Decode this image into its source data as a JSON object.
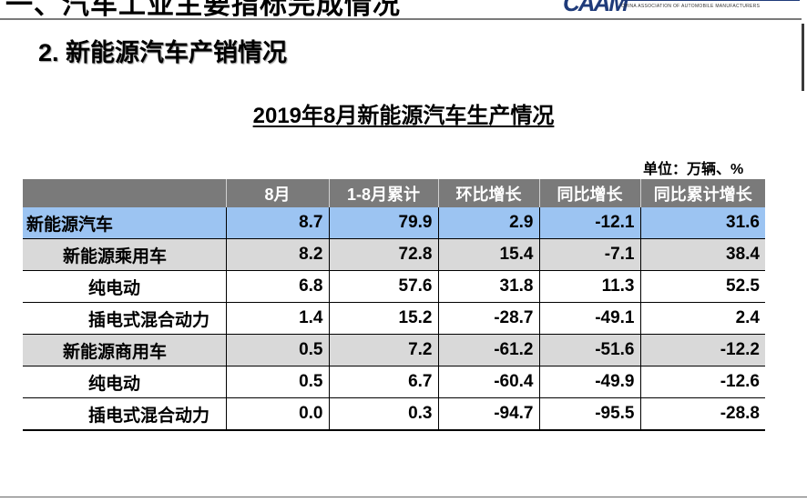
{
  "header": {
    "top_title": "一、汽车工业主要指标完成情况",
    "logo": {
      "mark": "CAAM",
      "subtitle": "CHINA ASSOCIATION OF AUTOMOBILE MANUFACTURERS"
    }
  },
  "section_title": "2. 新能源汽车产销情况",
  "table_title": "2019年8月新能源汽车生产情况",
  "unit_label": "单位：万辆、%",
  "table": {
    "columns": [
      "",
      "8月",
      "1-8月累计",
      "环比增长",
      "同比增长",
      "同比累计增长"
    ],
    "rows": [
      {
        "name": "新能源汽车",
        "level": 0,
        "values": [
          "8.7",
          "79.9",
          "2.9",
          "-12.1",
          "31.6"
        ]
      },
      {
        "name": "新能源乘用车",
        "level": 1,
        "values": [
          "8.2",
          "72.8",
          "15.4",
          "-7.1",
          "38.4"
        ]
      },
      {
        "name": "纯电动",
        "level": 2,
        "values": [
          "6.8",
          "57.6",
          "31.8",
          "11.3",
          "52.5"
        ]
      },
      {
        "name": "插电式混合动力",
        "level": 2,
        "values": [
          "1.4",
          "15.2",
          "-28.7",
          "-49.1",
          "2.4"
        ]
      },
      {
        "name": "新能源商用车",
        "level": 1,
        "values": [
          "0.5",
          "7.2",
          "-61.2",
          "-51.6",
          "-12.2"
        ]
      },
      {
        "name": "纯电动",
        "level": 2,
        "values": [
          "0.5",
          "6.7",
          "-60.4",
          "-49.9",
          "-12.6"
        ]
      },
      {
        "name": "插电式混合动力",
        "level": 2,
        "values": [
          "0.0",
          "0.3",
          "-94.7",
          "-95.5",
          "-28.8"
        ]
      }
    ]
  }
}
